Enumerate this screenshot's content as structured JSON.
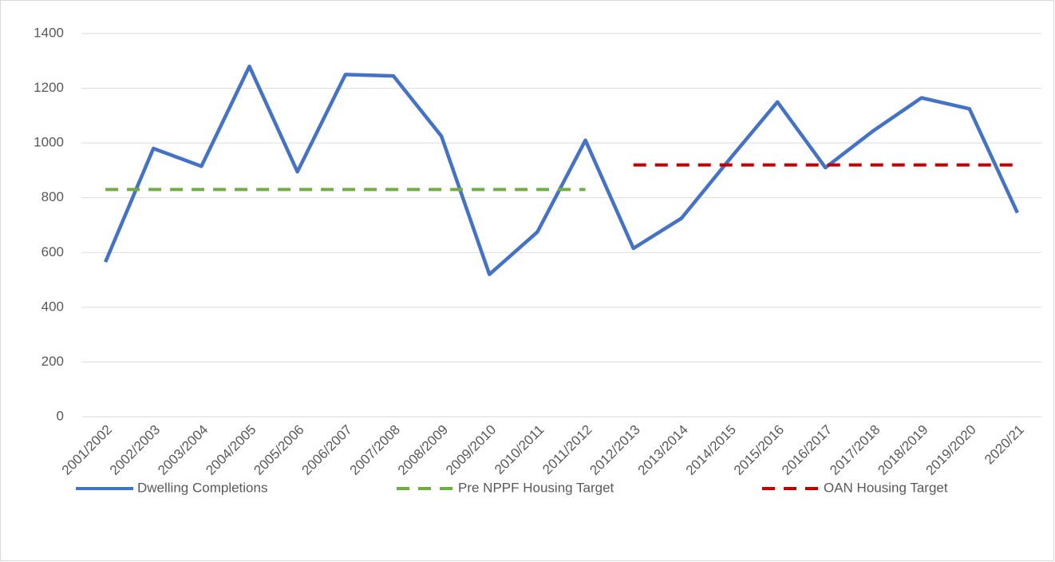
{
  "chart_data": {
    "type": "line",
    "categories": [
      "2001/2002",
      "2002/2003",
      "2003/2004",
      "2004/2005",
      "2005/2006",
      "2006/2007",
      "2007/2008",
      "2008/2009",
      "2009/2010",
      "2010/2011",
      "2011/2012",
      "2012/2013",
      "2013/2014",
      "2014/2015",
      "2015/2016",
      "2016/2017",
      "2017/2018",
      "2018/2019",
      "2019/2020",
      "2020/21"
    ],
    "series": [
      {
        "name": "Dwelling Completions",
        "color": "#4472c4",
        "dashed": false,
        "values": [
          565,
          980,
          915,
          1280,
          895,
          1250,
          1245,
          1025,
          520,
          675,
          1010,
          615,
          725,
          940,
          1150,
          910,
          1045,
          1165,
          1125,
          745
        ]
      },
      {
        "name": "Pre NPPF Housing Target",
        "color": "#70ad47",
        "dashed": true,
        "values": [
          830,
          830,
          830,
          830,
          830,
          830,
          830,
          830,
          830,
          830,
          830,
          null,
          null,
          null,
          null,
          null,
          null,
          null,
          null,
          null
        ]
      },
      {
        "name": "OAN Housing Target",
        "color": "#c00000",
        "dashed": true,
        "values": [
          null,
          null,
          null,
          null,
          null,
          null,
          null,
          null,
          null,
          null,
          null,
          920,
          920,
          920,
          920,
          920,
          920,
          920,
          920,
          920
        ]
      }
    ],
    "ylim": [
      0,
      1400
    ],
    "yticks": [
      0,
      200,
      400,
      600,
      800,
      1000,
      1200,
      1400
    ],
    "grid": true
  }
}
